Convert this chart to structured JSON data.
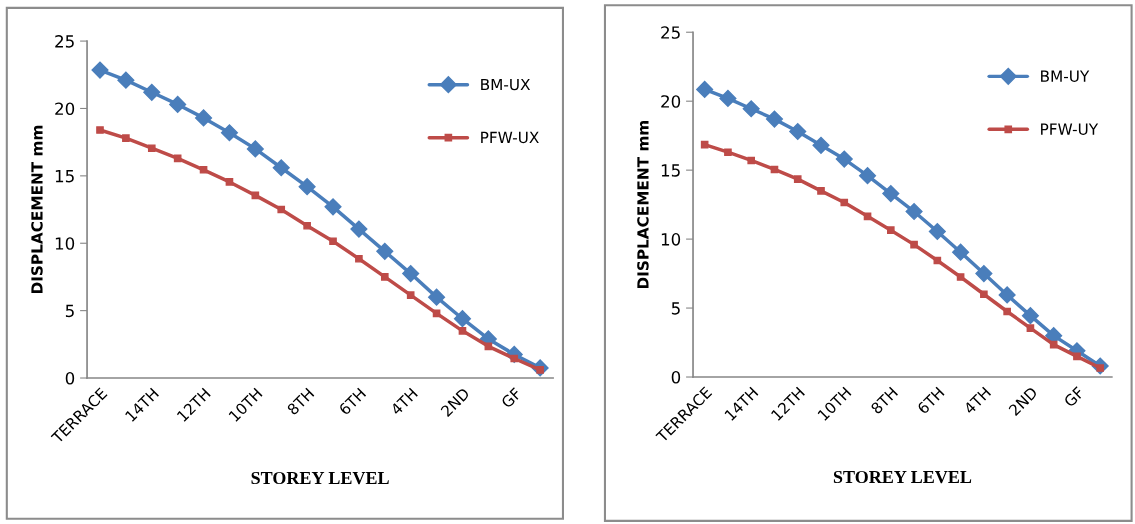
{
  "chart_data": [
    {
      "type": "line",
      "xlabel": "STOREY LEVEL",
      "ylabel": "DISPLACEMENT mm",
      "categories": [
        "TERRACE",
        null,
        "14TH",
        null,
        "12TH",
        null,
        "10TH",
        null,
        "8TH",
        null,
        "6TH",
        null,
        "4TH",
        null,
        "2ND",
        null,
        "GF",
        null
      ],
      "series": [
        {
          "name": "BM-UX",
          "color": "#4a7ebb",
          "marker": "diamond",
          "values": [
            22.85,
            22.1,
            21.2,
            20.3,
            19.3,
            18.2,
            17.0,
            15.6,
            14.2,
            12.7,
            11.05,
            9.4,
            7.75,
            6.0,
            4.4,
            2.9,
            1.75,
            0.75
          ]
        },
        {
          "name": "PFW-UX",
          "color": "#be4b48",
          "marker": "square",
          "values": [
            18.4,
            17.8,
            17.05,
            16.3,
            15.45,
            14.55,
            13.55,
            12.5,
            11.3,
            10.15,
            8.85,
            7.5,
            6.15,
            4.8,
            3.5,
            2.35,
            1.45,
            0.6
          ]
        }
      ],
      "ylim": [
        0,
        25
      ],
      "yticks": [
        0,
        5,
        10,
        15,
        20,
        25
      ],
      "grid": false,
      "legend": "top right",
      "line_style": "solid"
    },
    {
      "type": "line",
      "xlabel": "STOREY LEVEL",
      "ylabel": "DISPLACEMENT mm",
      "categories": [
        "TERRACE",
        null,
        "14TH",
        null,
        "12TH",
        null,
        "10TH",
        null,
        "8TH",
        null,
        "6TH",
        null,
        "4TH",
        null,
        "2ND",
        null,
        "GF",
        null
      ],
      "series": [
        {
          "name": "BM-UY",
          "color": "#4a7ebb",
          "marker": "diamond",
          "values": [
            20.85,
            20.2,
            19.45,
            18.7,
            17.8,
            16.8,
            15.8,
            14.6,
            13.3,
            12.0,
            10.55,
            9.05,
            7.5,
            5.95,
            4.45,
            3.0,
            1.9,
            0.8
          ]
        },
        {
          "name": "PFW-UY",
          "color": "#be4b48",
          "marker": "square",
          "values": [
            16.85,
            16.3,
            15.7,
            15.05,
            14.35,
            13.5,
            12.65,
            11.65,
            10.65,
            9.6,
            8.45,
            7.25,
            6.0,
            4.75,
            3.55,
            2.35,
            1.5,
            0.65
          ]
        }
      ],
      "ylim": [
        0,
        25
      ],
      "yticks": [
        0,
        5,
        10,
        15,
        20,
        25
      ],
      "grid": false,
      "legend": "top right",
      "line_style": "solid"
    }
  ]
}
